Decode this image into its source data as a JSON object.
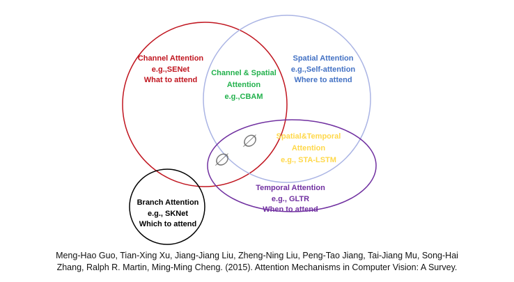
{
  "sets": [
    {
      "id": "channel",
      "lines": [
        "Channel Attention",
        "e.g.,SENet",
        "What to attend"
      ],
      "color": "#c0151f"
    },
    {
      "id": "spatial",
      "lines": [
        "Spatial Attention",
        "e.g.,Self-attention",
        "Where to attend"
      ],
      "color": "#4472c4",
      "stroke": "#aab4e4"
    },
    {
      "id": "temporal",
      "lines": [
        "Temporal Attention",
        "e.g., GLTR",
        "When to attend"
      ],
      "color": "#7030a0"
    },
    {
      "id": "branch",
      "lines": [
        "Branch Attention",
        "e.g., SKNet",
        "Which to attend"
      ],
      "color": "#000000"
    }
  ],
  "intersections": [
    {
      "id": "channel-spatial",
      "lines": [
        "Channel & Spatial",
        "Attention",
        "e.g.,CBAM"
      ],
      "color": "#22b14c"
    },
    {
      "id": "spatial-temporal",
      "lines": [
        "Spatial&Temporal",
        "Attention",
        "e.g., STA-LSTM"
      ],
      "color": "#ffd84a"
    }
  ],
  "empty_symbol": "∅",
  "caption": [
    "Meng-Hao Guo, Tian-Xing Xu, Jiang-Jiang Liu, Zheng-Ning Liu, Peng-Tao Jiang, Tai-Jiang Mu, Song-Hai",
    "Zhang, Ralph R. Martin, Ming-Ming Cheng. (2015). Attention Mechanisms in Computer Vision: A Survey."
  ]
}
